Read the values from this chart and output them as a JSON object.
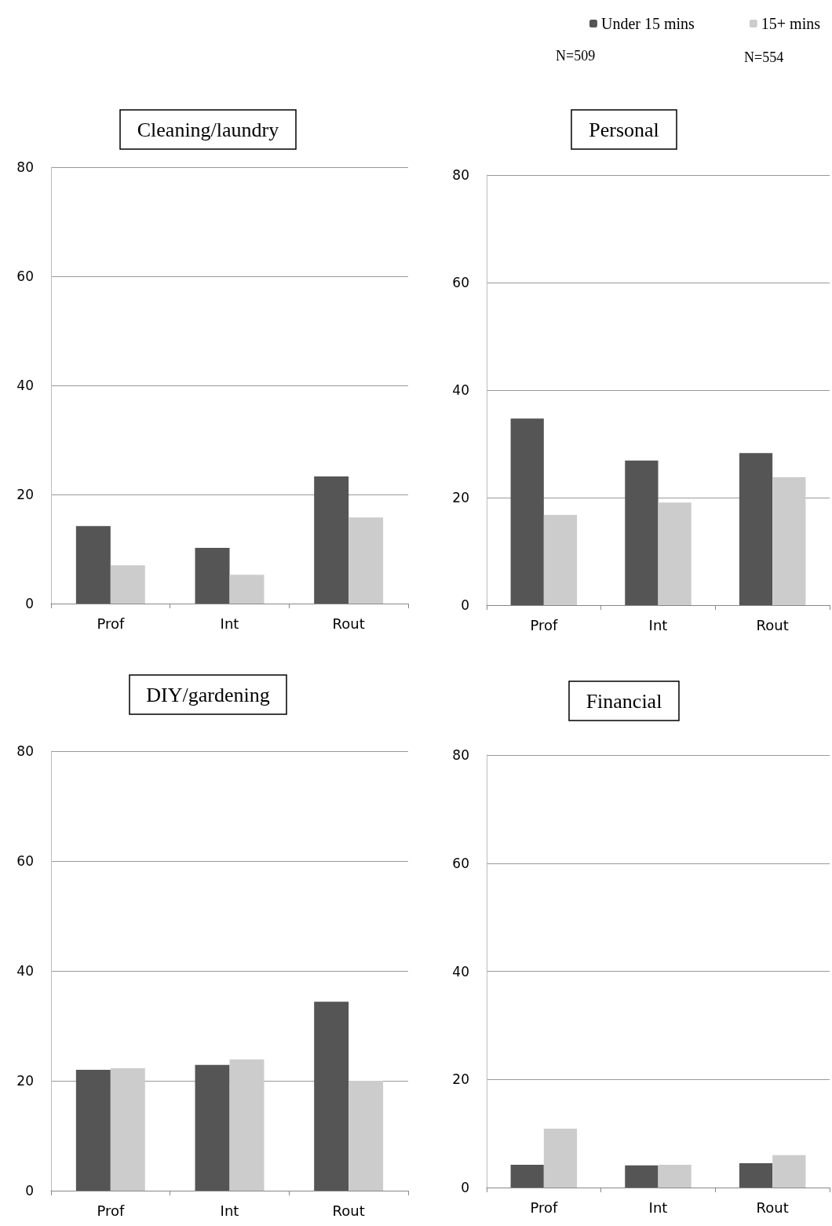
{
  "chart_data": [
    {
      "type": "bar",
      "title": "Cleaning/laundry",
      "categories": [
        "Prof",
        "Int",
        "Rout"
      ],
      "series": [
        {
          "color": "#555555",
          "values": [
            14.2,
            10.2,
            23.3
          ]
        },
        {
          "color": "#cccccc",
          "values": [
            7.0,
            5.3,
            15.8
          ]
        }
      ],
      "ylim": [
        0,
        80
      ],
      "yticks": [
        0,
        20,
        40,
        60,
        80
      ],
      "grid": "y",
      "legend": false
    },
    {
      "type": "bar",
      "title": "Personal",
      "categories": [
        "Prof",
        "Int",
        "Rout"
      ],
      "series": [
        {
          "name": "Under 15 mins",
          "color": "#555555",
          "values": [
            34.7,
            26.9,
            28.3
          ]
        },
        {
          "name": "15+ mins",
          "color": "#cccccc",
          "values": [
            16.8,
            19.1,
            23.8
          ]
        }
      ],
      "ylim": [
        0,
        80
      ],
      "yticks": [
        0,
        20,
        40,
        60,
        80
      ],
      "grid": "y",
      "legend": "top right",
      "annotations": [
        "N=509",
        "N=554"
      ]
    },
    {
      "type": "bar",
      "title": "DIY/gardening",
      "categories": [
        "Prof",
        "Int",
        "Rout"
      ],
      "series": [
        {
          "color": "#555555",
          "values": [
            22.0,
            22.9,
            34.4
          ]
        },
        {
          "color": "#cccccc",
          "values": [
            22.3,
            23.9,
            20.0
          ]
        }
      ],
      "ylim": [
        0,
        80
      ],
      "yticks": [
        0,
        20,
        40,
        60,
        80
      ],
      "grid": "y",
      "legend": false
    },
    {
      "type": "bar",
      "title": "Financial",
      "categories": [
        "Prof",
        "Int",
        "Rout"
      ],
      "series": [
        {
          "color": "#555555",
          "values": [
            4.2,
            4.1,
            4.5
          ]
        },
        {
          "color": "#cccccc",
          "values": [
            10.9,
            4.2,
            6.0
          ]
        }
      ],
      "ylim": [
        0,
        80
      ],
      "yticks": [
        0,
        20,
        40,
        60,
        80
      ],
      "grid": "y",
      "legend": false
    }
  ]
}
